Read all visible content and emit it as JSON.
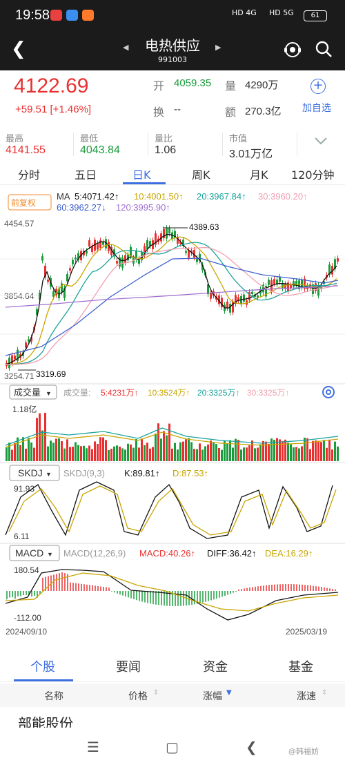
{
  "status": {
    "time": "19:58",
    "signal1": "HD 4G",
    "signal2": "HD 5G",
    "battery": "61"
  },
  "header": {
    "title": "电热供应",
    "code": "991003"
  },
  "quote": {
    "price": "4122.69",
    "change": "+59.51",
    "change_pct": "[+1.46%]",
    "open_label": "开",
    "open": "4059.35",
    "vol_label": "量",
    "vol": "4290万",
    "turnover_label": "换",
    "turnover": "--",
    "amount_label": "额",
    "amount": "270.3亿",
    "add_label": "加自选"
  },
  "stats": [
    {
      "label": "最高",
      "value": "4141.55"
    },
    {
      "label": "最低",
      "value": "4043.84"
    },
    {
      "label": "量比",
      "value": "1.06"
    },
    {
      "label": "市值",
      "value": "3.01万亿"
    }
  ],
  "tabs": [
    "分时",
    "五日",
    "日K",
    "周K",
    "月K",
    "120分钟"
  ],
  "indicators": {
    "adj": "前复权",
    "ma_label": "MA",
    "ma5": "5:4071.42↑",
    "ma10": "10:4001.50↑",
    "ma20": "20:3967.84↑",
    "ma30": "30:3960.20↑",
    "ma60": "60:3962.27↓",
    "ma120": "120:3995.90↑",
    "price_high": "4454.57",
    "price_mid": "3854.64",
    "price_low": "3254.71",
    "max_mark": "4389.63",
    "min_mark": "3319.69",
    "vol_btn": "成交量",
    "vol_label": "成交量:",
    "vol5": "5:4231万↑",
    "vol10": "10:3524万↑",
    "vol20": "20:3325万↑",
    "vol30": "30:3325万↑",
    "vol_max": "1.18亿",
    "skdj_btn": "SKDJ",
    "skdj_params": "SKDJ(9,3)",
    "skdj_k": "K:89.81↑",
    "skdj_d": "D:87.53↑",
    "skdj_top": "91.93",
    "skdj_bot": "6.11",
    "macd_btn": "MACD",
    "macd_params": "MACD(12,26,9)",
    "macd_val": "MACD:40.26↑",
    "diff": "DIFF:36.42↑",
    "dea": "DEA:16.29↑",
    "macd_top": "180.54",
    "macd_bot": "-112.00",
    "date_start": "2024/09/10",
    "date_end": "2025/03/19"
  },
  "colors": {
    "up": "#e93030",
    "down": "#1a9c3c",
    "accent": "#3d6fe0",
    "ma5": "#111111",
    "ma10": "#c8a400",
    "ma20": "#1aa39a",
    "ma30": "#f0a0b0",
    "ma60": "#3d5fd0",
    "ma120": "#a070d0"
  },
  "bottom_tabs": [
    "个股",
    "要闻",
    "资金",
    "基金"
  ],
  "columns": [
    "名称",
    "价格",
    "涨幅",
    "涨速"
  ],
  "stock_row": "部能股份",
  "watermark": "@韩福妨"
}
